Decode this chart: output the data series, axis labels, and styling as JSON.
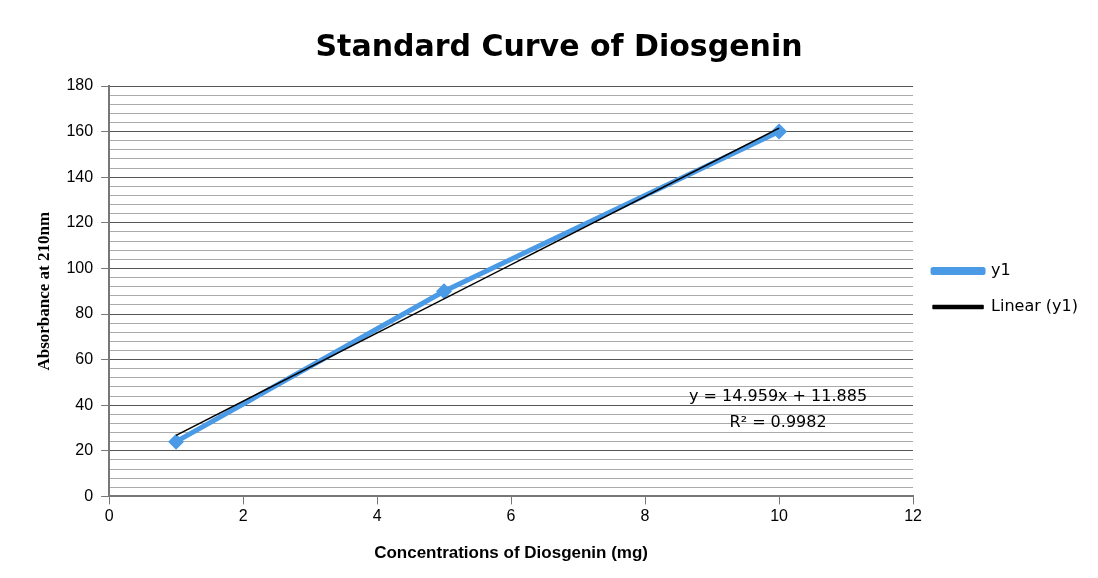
{
  "chart_data": {
    "type": "scatter",
    "title": "Standard Curve of Diosgenin",
    "xlabel": "Concentrations of Diosgenin (mg)",
    "ylabel": "Absorbance at 210nm",
    "series": [
      {
        "name": "y1",
        "type": "line",
        "color": "#4a9ae6",
        "x": [
          1,
          5,
          10
        ],
        "values": [
          24,
          90,
          160
        ],
        "marker": "diamond"
      },
      {
        "name": "Linear (y1)",
        "type": "line",
        "color": "#000000",
        "x": [
          1,
          10
        ],
        "values": [
          26.8,
          161.5
        ],
        "marker": "none"
      }
    ],
    "annotations": [
      "y = 14.959x + 11.885",
      "R² = 0.9982"
    ],
    "xlim": [
      0,
      12
    ],
    "xticks": [
      0,
      2,
      4,
      6,
      8,
      10,
      12
    ],
    "ylim": [
      0,
      180
    ],
    "yticks": [
      0,
      {
        "value": 4,
        "label": null
      },
      {
        "value": 8,
        "label": null
      },
      {
        "value": 12,
        "label": null
      },
      {
        "value": 16,
        "label": null
      },
      20,
      {
        "value": 24,
        "label": null
      },
      {
        "value": 28,
        "label": null
      },
      {
        "value": 32,
        "label": null
      },
      {
        "value": 36,
        "label": null
      },
      40,
      {
        "value": 44,
        "label": null
      },
      {
        "value": 48,
        "label": null
      },
      {
        "value": 52,
        "label": null
      },
      {
        "value": 56,
        "label": null
      },
      60,
      {
        "value": 64,
        "label": null
      },
      {
        "value": 68,
        "label": null
      },
      {
        "value": 72,
        "label": null
      },
      {
        "value": 76,
        "label": null
      },
      80,
      {
        "value": 84,
        "label": null
      },
      {
        "value": 88,
        "label": null
      },
      {
        "value": 92,
        "label": null
      },
      {
        "value": 96,
        "label": null
      },
      100,
      {
        "value": 104,
        "label": null
      },
      {
        "value": 108,
        "label": null
      },
      {
        "value": 112,
        "label": null
      },
      {
        "value": 116,
        "label": null
      },
      120,
      {
        "value": 124,
        "label": null
      },
      {
        "value": 128,
        "label": null
      },
      {
        "value": 132,
        "label": null
      },
      {
        "value": 136,
        "label": null
      },
      140,
      {
        "value": 144,
        "label": null
      },
      {
        "value": 148,
        "label": null
      },
      {
        "value": 152,
        "label": null
      },
      {
        "value": 156,
        "label": null
      },
      160,
      {
        "value": 164,
        "label": null
      },
      {
        "value": 168,
        "label": null
      },
      {
        "value": 172,
        "label": null
      },
      {
        "value": 176,
        "label": null
      },
      180
    ],
    "grid": "y",
    "legend": "right"
  }
}
